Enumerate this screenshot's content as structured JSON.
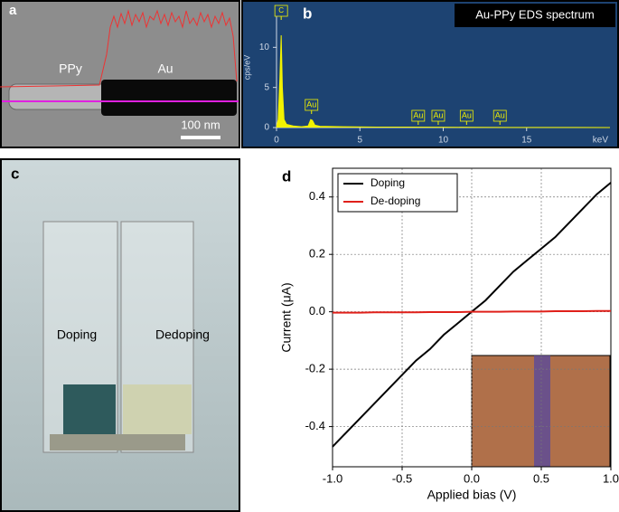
{
  "panel_a": {
    "label": "a",
    "ppy": "PPy",
    "au": "Au",
    "scale_bar": "100 nm"
  },
  "panel_c": {
    "label": "c",
    "left": "Doping",
    "right": "Dedoping"
  },
  "chart_data": [
    {
      "type": "area",
      "panel": "b",
      "title": "Au-PPy EDS spectrum",
      "y_label": "cps/eV",
      "x_label": "keV",
      "x": [
        0,
        0.1,
        0.2,
        0.28,
        0.35,
        0.45,
        0.6,
        1,
        1.5,
        1.9,
        2.05,
        2.15,
        2.3,
        2.6,
        4,
        6,
        8,
        10,
        12,
        14,
        16,
        18,
        20
      ],
      "values": [
        0,
        1,
        6,
        11.5,
        5,
        1,
        0.4,
        0.2,
        0.1,
        0.2,
        1,
        0.9,
        0.3,
        0.15,
        0.1,
        0.06,
        0.05,
        0.04,
        0.03,
        0.02,
        0.02,
        0.01,
        0
      ],
      "color": "#f2f200",
      "xlim": [
        0,
        20
      ],
      "ylim": [
        0,
        15
      ],
      "xticks": [
        0,
        5,
        10,
        15
      ],
      "yticks": [
        0,
        5,
        10
      ],
      "annotations": [
        {
          "text": "C",
          "x": 0.28
        },
        {
          "text": "Au",
          "x": 2.1
        },
        {
          "text": "Au",
          "x": 8.5
        },
        {
          "text": "Au",
          "x": 9.7
        },
        {
          "text": "Au",
          "x": 11.4
        },
        {
          "text": "Au",
          "x": 13.4
        }
      ]
    },
    {
      "type": "line",
      "panel": "d",
      "x_label": "Applied bias (V)",
      "y_label": "Current (μA)",
      "x": [
        -1,
        -0.9,
        -0.8,
        -0.7,
        -0.6,
        -0.5,
        -0.4,
        -0.3,
        -0.2,
        -0.1,
        0,
        0.1,
        0.2,
        0.3,
        0.4,
        0.5,
        0.6,
        0.7,
        0.8,
        0.9,
        1
      ],
      "series": [
        {
          "name": "Doping",
          "color": "#000000",
          "values": [
            -0.47,
            -0.42,
            -0.37,
            -0.32,
            -0.27,
            -0.22,
            -0.17,
            -0.13,
            -0.08,
            -0.04,
            0,
            0.04,
            0.09,
            0.14,
            0.18,
            0.22,
            0.26,
            0.31,
            0.36,
            0.41,
            0.45
          ]
        },
        {
          "name": "De-doping",
          "color": "#e0201a",
          "values": [
            -0.003,
            -0.003,
            -0.003,
            -0.002,
            -0.002,
            -0.002,
            -0.002,
            -0.001,
            -0.001,
            -0.001,
            0,
            0,
            0,
            0.001,
            0.001,
            0.001,
            0.002,
            0.002,
            0.002,
            0.003,
            0.003
          ]
        }
      ],
      "xlim": [
        -1,
        1
      ],
      "ylim": [
        -0.54,
        0.5
      ],
      "xticks": [
        {
          "value": -1,
          "label": "-1.0"
        },
        -0.5,
        {
          "value": 0,
          "label": "0.0"
        },
        0.5,
        {
          "value": 1,
          "label": "1.0"
        }
      ],
      "yticks": [
        -0.4,
        -0.2,
        {
          "value": 0,
          "label": "0.0"
        },
        0.2,
        0.4
      ],
      "grid": true,
      "legend": "upper-left"
    }
  ]
}
